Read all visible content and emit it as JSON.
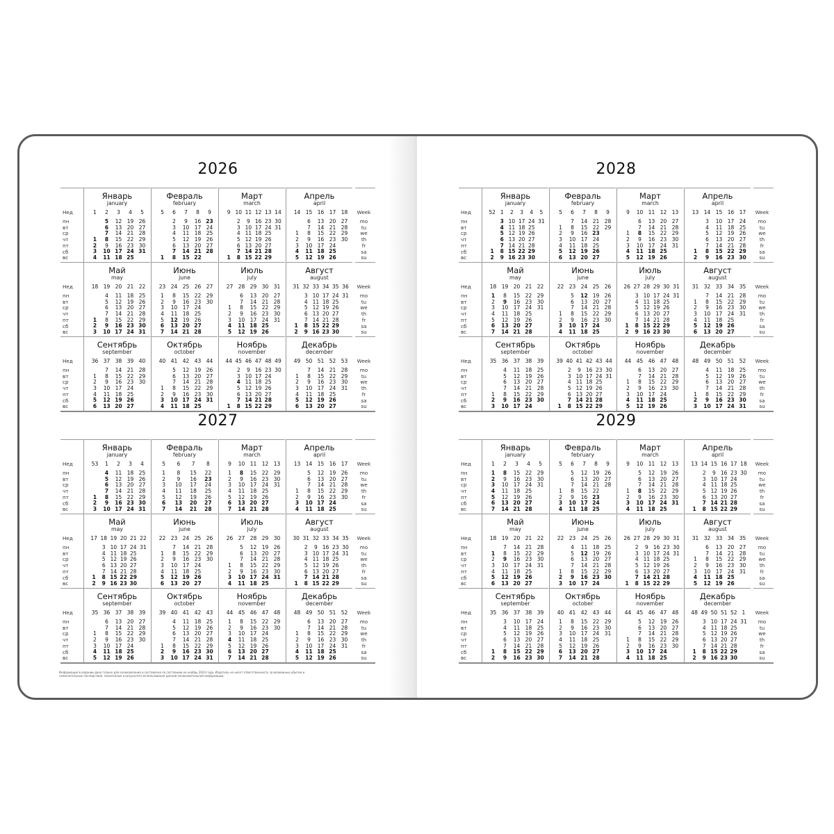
{
  "pages": [
    {
      "years": [
        2026,
        2027
      ]
    },
    {
      "years": [
        2028,
        2029
      ]
    }
  ],
  "labels": {
    "ru_week": "Нед",
    "ru_days": [
      "пн",
      "вт",
      "ср",
      "чт",
      "пт",
      "сб",
      "вс"
    ],
    "en_week": "Week",
    "en_days": [
      "mo",
      "tu",
      "we",
      "th",
      "fr",
      "sa",
      "su"
    ]
  },
  "months": [
    {
      "ru": "Январь",
      "en": "january"
    },
    {
      "ru": "Февраль",
      "en": "february"
    },
    {
      "ru": "Март",
      "en": "march"
    },
    {
      "ru": "Апрель",
      "en": "april"
    },
    {
      "ru": "Май",
      "en": "may"
    },
    {
      "ru": "Июнь",
      "en": "june"
    },
    {
      "ru": "Июль",
      "en": "july"
    },
    {
      "ru": "Август",
      "en": "august"
    },
    {
      "ru": "Сентябрь",
      "en": "september"
    },
    {
      "ru": "Октябрь",
      "en": "october"
    },
    {
      "ru": "Ноябрь",
      "en": "november"
    },
    {
      "ru": "Декабрь",
      "en": "december"
    }
  ],
  "holidays": [
    "01-01",
    "01-02",
    "01-03",
    "01-04",
    "01-05",
    "01-06",
    "01-07",
    "01-08",
    "02-23",
    "03-08",
    "05-01",
    "05-09",
    "06-12",
    "11-04"
  ],
  "note": "Информация в издании дана только для ознакомления и составлена по состоянию на ноябрь 2024 года. Издатель не несет ответственность за возможные убытки и нежелательные последствия, понесенные в результате использования данной ознакомительной информации.",
  "colors": {
    "border": "#5a5a5a",
    "lines": "#999999"
  }
}
